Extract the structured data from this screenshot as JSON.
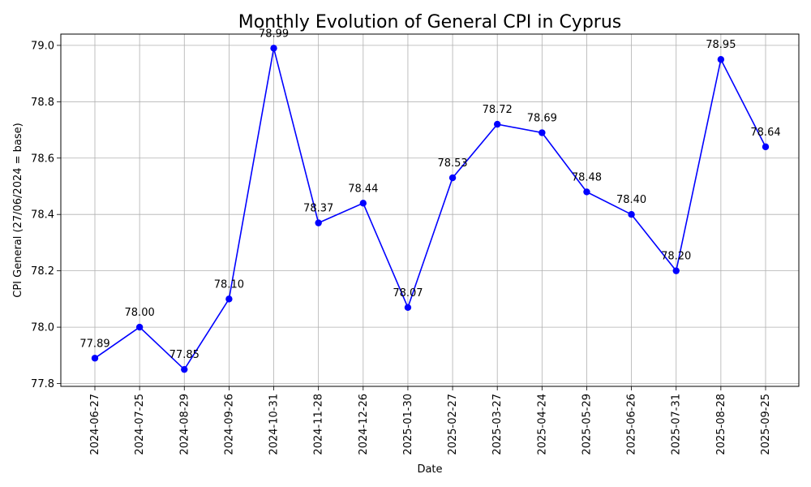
{
  "chart_data": {
    "type": "line",
    "title": "Monthly Evolution of General CPI in Cyprus",
    "xlabel": "Date",
    "ylabel": "CPI General (27/06/2024 = base)",
    "categories": [
      "2024-06-27",
      "2024-07-25",
      "2024-08-29",
      "2024-09-26",
      "2024-10-31",
      "2024-11-28",
      "2024-12-26",
      "2025-01-30",
      "2025-02-27",
      "2025-03-27",
      "2025-04-24",
      "2025-05-29",
      "2025-06-26",
      "2025-07-31",
      "2025-08-28",
      "2025-09-25"
    ],
    "series": [
      {
        "color": "#0000ff",
        "values": [
          77.89,
          78.0,
          77.85,
          78.1,
          78.99,
          78.37,
          78.44,
          78.07,
          78.53,
          78.72,
          78.69,
          78.48,
          78.4,
          78.2,
          78.95,
          78.64
        ],
        "labels": [
          "77.89",
          "78.00",
          "77.85",
          "78.10",
          "78.99",
          "78.37",
          "78.44",
          "78.07",
          "78.53",
          "78.72",
          "78.69",
          "78.48",
          "78.40",
          "78.20",
          "78.95",
          "78.64"
        ]
      }
    ],
    "ylim": [
      77.79,
      79.04
    ],
    "yticks": [
      77.8,
      78.0,
      78.2,
      78.4,
      78.6,
      78.8,
      79.0
    ],
    "yticklabels": [
      "77.8",
      "78.0",
      "78.2",
      "78.4",
      "78.6",
      "78.8",
      "79.0"
    ],
    "grid": true,
    "marker": "circle"
  }
}
